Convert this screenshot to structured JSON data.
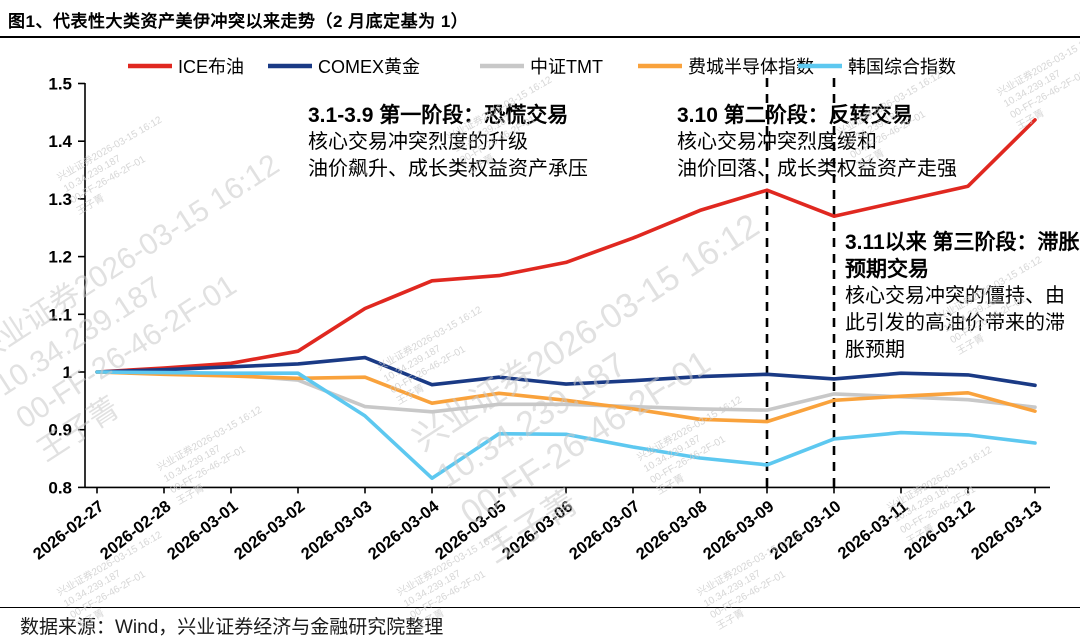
{
  "header": {
    "title": "图1、代表性大类资产美伊冲突以来走势（2 月底定基为 1）"
  },
  "footer": {
    "source": "数据来源：Wind，兴业证券经济与金融研究院整理"
  },
  "watermark": {
    "lines": [
      "兴业证券2026-03-15 16:12",
      "10.34.239.187",
      "00-FF-26-46-2F-01",
      "王子菁"
    ]
  },
  "annotations": [
    {
      "title_lines": [
        "3.1-3.9 第一阶段：恐慌交易"
      ],
      "body_lines": [
        "核心交易冲突烈度的升级",
        "油价飙升、成长类权益资产承压"
      ]
    },
    {
      "title_lines": [
        "3.10 第二阶段：反转交易"
      ],
      "body_lines": [
        "核心交易冲突烈度缓和",
        "油价回落、成长类权益资产走强"
      ]
    },
    {
      "title_lines": [
        "3.11以来 第三阶段：滞胀",
        "预期交易"
      ],
      "body_lines": [
        "核心交易冲突的僵持、由",
        "此引发的高油价带来的滞",
        "胀预期"
      ]
    }
  ],
  "chart_data": {
    "type": "line",
    "title": "代表性大类资产美伊冲突以来走势（2月底定基为1）",
    "x": [
      "2026-02-27",
      "2026-02-28",
      "2026-03-01",
      "2026-03-02",
      "2026-03-03",
      "2026-03-04",
      "2026-03-05",
      "2026-03-06",
      "2026-03-07",
      "2026-03-08",
      "2026-03-09",
      "2026-03-10",
      "2026-03-11",
      "2026-03-12",
      "2026-03-13"
    ],
    "series": [
      {
        "name": "ICE布油",
        "color": "#e02820",
        "values": [
          1.0,
          1.007,
          1.015,
          1.036,
          1.11,
          1.158,
          1.167,
          1.19,
          1.232,
          1.28,
          1.315,
          1.27,
          1.296,
          1.322,
          1.437
        ]
      },
      {
        "name": "COMEX黄金",
        "color": "#1a3a85",
        "values": [
          1.0,
          1.004,
          1.009,
          1.014,
          1.025,
          0.978,
          0.991,
          0.979,
          0.985,
          0.992,
          0.996,
          0.988,
          0.998,
          0.995,
          0.977
        ]
      },
      {
        "name": "中证TMT",
        "color": "#c8c8c8",
        "values": [
          1.0,
          0.998,
          0.995,
          0.986,
          0.94,
          0.931,
          0.944,
          0.944,
          0.94,
          0.936,
          0.934,
          0.962,
          0.957,
          0.952,
          0.939
        ]
      },
      {
        "name": "费城半导体指数",
        "color": "#f9a23c",
        "values": [
          1.0,
          0.996,
          0.993,
          0.989,
          0.991,
          0.946,
          0.963,
          0.951,
          0.936,
          0.918,
          0.914,
          0.951,
          0.958,
          0.964,
          0.932
        ]
      },
      {
        "name": "韩国综合指数",
        "color": "#5dc8f0",
        "values": [
          1.0,
          0.999,
          0.998,
          0.998,
          0.924,
          0.816,
          0.893,
          0.892,
          0.87,
          0.851,
          0.839,
          0.884,
          0.895,
          0.891,
          0.877
        ]
      }
    ],
    "ylim": [
      0.8,
      1.5
    ],
    "yticks": [
      0.8,
      0.9,
      1,
      1.1,
      1.2,
      1.3,
      1.4,
      1.5
    ],
    "xlabel": "",
    "ylabel": "",
    "grid": false,
    "legend_position": "top",
    "dashed_vlines": [
      "2026-03-09",
      "2026-03-10"
    ]
  }
}
